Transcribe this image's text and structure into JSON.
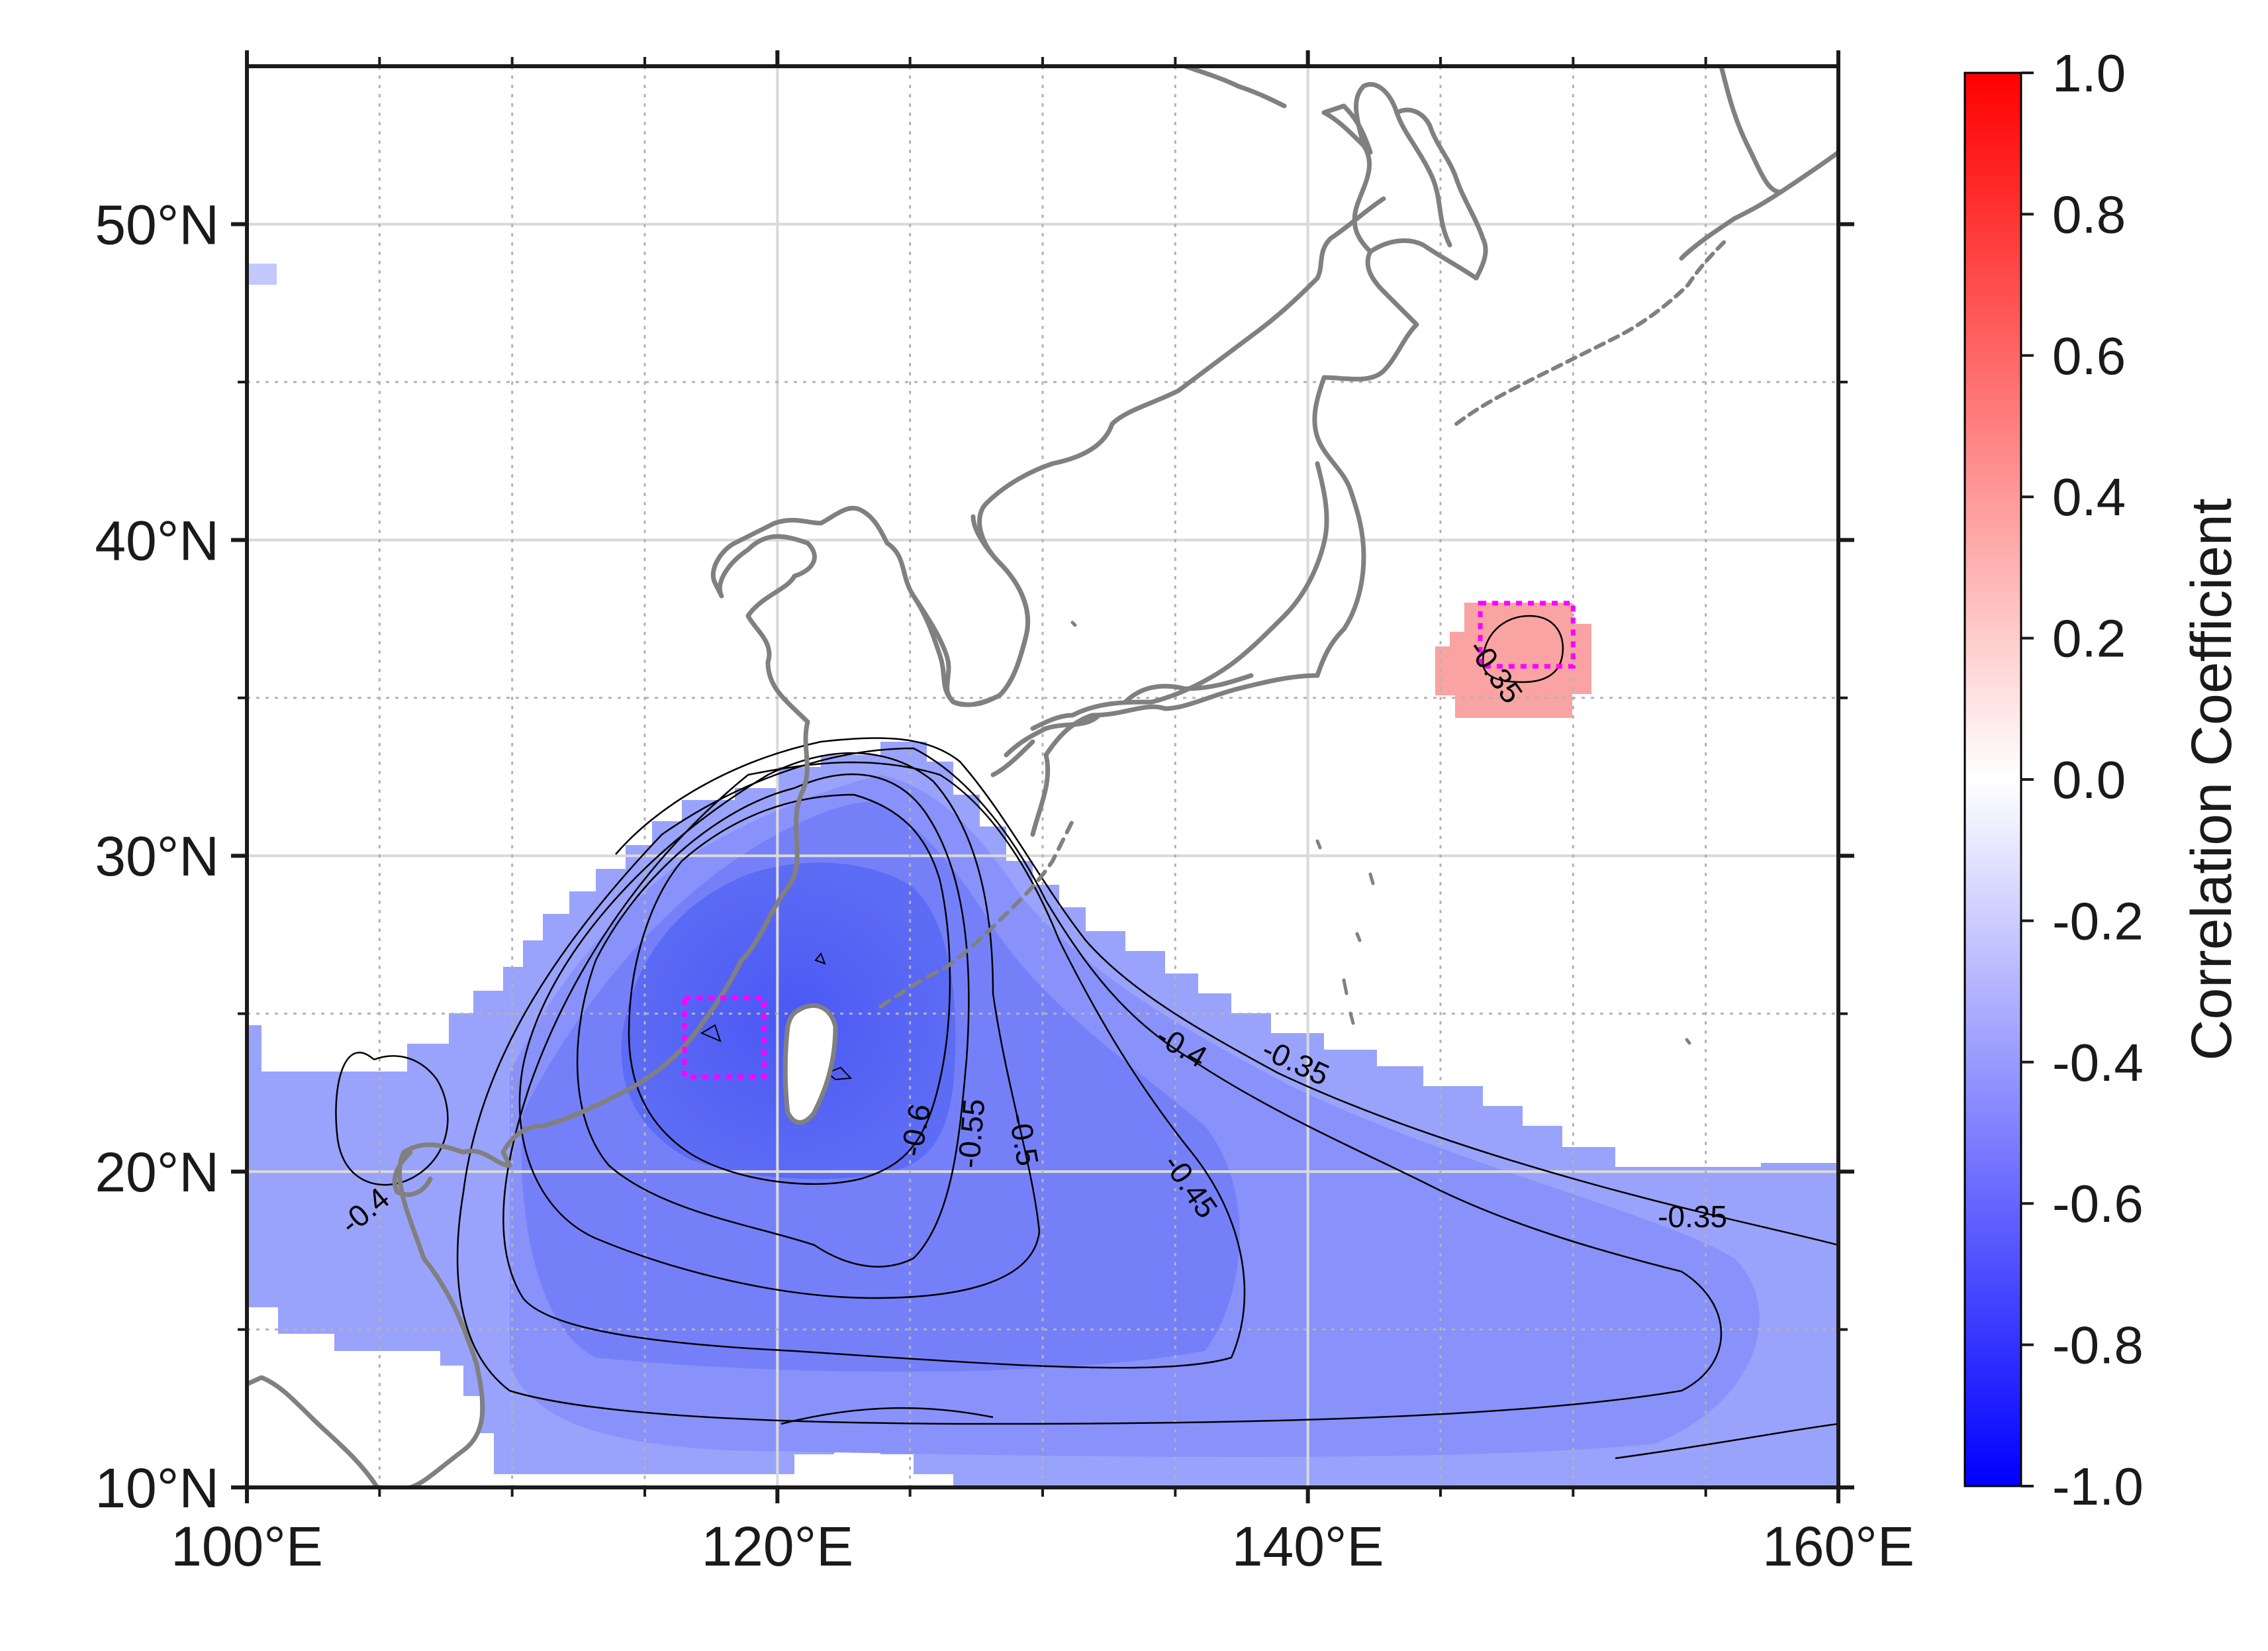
{
  "map": {
    "lon_range": [
      100,
      160
    ],
    "lat_range": [
      10,
      55
    ],
    "x_ticks": [
      {
        "value": 100,
        "label": "100°E"
      },
      {
        "value": 120,
        "label": "120°E"
      },
      {
        "value": 140,
        "label": "140°E"
      },
      {
        "value": 160,
        "label": "160°E"
      }
    ],
    "y_ticks": [
      {
        "value": 10,
        "label": "10°N"
      },
      {
        "value": 20,
        "label": "20°N"
      },
      {
        "value": 30,
        "label": "30°N"
      },
      {
        "value": 40,
        "label": "40°N"
      },
      {
        "value": 50,
        "label": "50°N"
      }
    ],
    "grid_major_lon": [
      100,
      120,
      140,
      160
    ],
    "grid_major_lat": [
      10,
      20,
      30,
      40,
      50
    ],
    "grid_minor_lon": [
      105,
      110,
      115,
      125,
      130,
      135,
      145,
      150,
      155
    ],
    "grid_minor_lat": [
      15,
      25,
      35,
      45
    ],
    "colors": {
      "coastline": "#808080",
      "box_outline": "#ff00ff",
      "negative_max": "#0000ff",
      "positive_max": "#ff0000",
      "major_grid": "#d9d9d9",
      "minor_grid": "#b3b3b3"
    },
    "boxes": [
      {
        "lon": [
          116.5,
          119.5
        ],
        "lat": [
          23,
          25.5
        ]
      },
      {
        "lon": [
          146.5,
          150
        ],
        "lat": [
          36,
          38
        ]
      }
    ],
    "contour_labels": [
      {
        "text": "-0.6",
        "lon": 125.3,
        "lat": 21.3,
        "angle": -80
      },
      {
        "text": "-0.55",
        "lon": 127.4,
        "lat": 21.2,
        "angle": -85
      },
      {
        "text": "-0.5",
        "lon": 129.2,
        "lat": 21.0,
        "angle": 80
      },
      {
        "text": "-0.45",
        "lon": 135.5,
        "lat": 19.5,
        "angle": 55
      },
      {
        "text": "-0.4",
        "lon": 135.2,
        "lat": 23.9,
        "angle": 30
      },
      {
        "text": "-0.35",
        "lon": 139.5,
        "lat": 23.4,
        "angle": 25
      },
      {
        "text": "-0.35",
        "lon": 154.5,
        "lat": 18.5,
        "angle": 0
      },
      {
        "text": "-0.4",
        "lon": 104.5,
        "lat": 18.7,
        "angle": -40
      },
      {
        "text": "-0.35",
        "lon": 147.0,
        "lat": 35.8,
        "angle": 55
      }
    ]
  },
  "colorbar": {
    "range": [
      -1.0,
      1.0
    ],
    "ticks": [
      "-1.0",
      "-0.8",
      "-0.6",
      "-0.4",
      "-0.2",
      "0.0",
      "0.2",
      "0.4",
      "0.6",
      "0.8",
      "1.0"
    ],
    "label": "Correlation Coefficient",
    "colors": {
      "low": "#0000ff",
      "mid": "#ffffff",
      "high": "#ff0000"
    }
  }
}
